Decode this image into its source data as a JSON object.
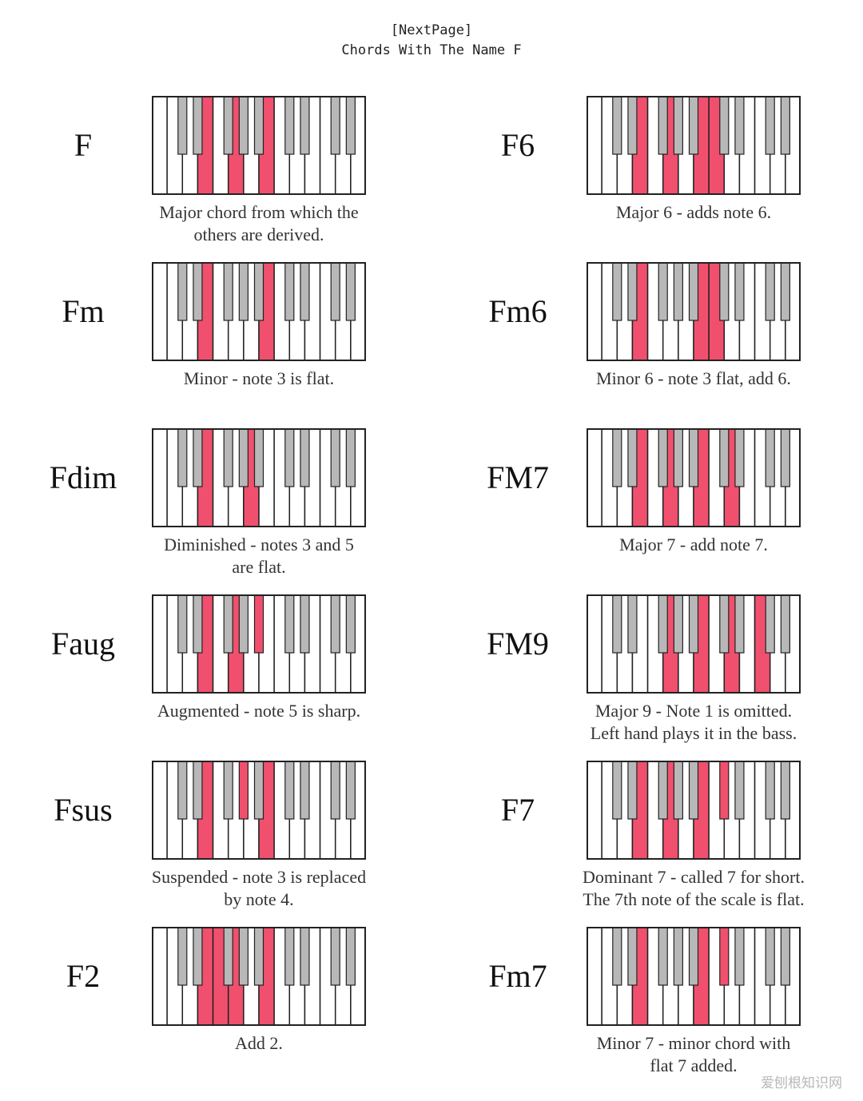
{
  "header": {
    "line1": "[NextPage]",
    "line2": "Chords With The Name F"
  },
  "colors": {
    "highlight": "#f0506e",
    "black_key": "#b8b8b8",
    "outline": "#222222"
  },
  "chords": [
    {
      "name": "F",
      "desc": [
        "Major chord from which the",
        "others are derived."
      ],
      "highlight": [
        "w:3",
        "w:5",
        "w:7"
      ]
    },
    {
      "name": "F6",
      "desc": [
        "Major 6 - adds note 6."
      ],
      "highlight": [
        "w:3",
        "w:5",
        "w:7",
        "w:8"
      ]
    },
    {
      "name": "Fm",
      "desc": [
        "Minor - note 3 is flat."
      ],
      "highlight": [
        "w:3",
        "b:4",
        "w:7"
      ]
    },
    {
      "name": "Fm6",
      "desc": [
        "Minor 6 - note 3 flat, add 6."
      ],
      "highlight": [
        "w:3",
        "b:4",
        "w:7",
        "w:8"
      ]
    },
    {
      "name": "Fdim",
      "desc": [
        "Diminished - notes 3 and 5",
        "are flat."
      ],
      "highlight": [
        "w:3",
        "b:4",
        "w:6"
      ]
    },
    {
      "name": "FM7",
      "desc": [
        "Major 7 - add note 7."
      ],
      "highlight": [
        "w:3",
        "w:5",
        "w:7",
        "w:9"
      ]
    },
    {
      "name": "Faug",
      "desc": [
        "Augmented - note 5 is sharp."
      ],
      "highlight": [
        "w:3",
        "w:5",
        "b:7"
      ]
    },
    {
      "name": "FM9",
      "desc": [
        "Major 9 - Note 1 is omitted.",
        "Left hand plays it in the bass."
      ],
      "highlight": [
        "w:5",
        "w:7",
        "w:9",
        "w:11"
      ]
    },
    {
      "name": "Fsus",
      "desc": [
        "Suspended - note 3 is replaced",
        "by note 4."
      ],
      "highlight": [
        "w:3",
        "b:6",
        "w:7"
      ]
    },
    {
      "name": "F7",
      "desc": [
        "Dominant 7 - called 7 for short.",
        "The 7th note of the scale is flat."
      ],
      "highlight": [
        "w:3",
        "w:5",
        "w:7",
        "b:9"
      ]
    },
    {
      "name": "F2",
      "desc": [
        "Add 2."
      ],
      "highlight": [
        "w:3",
        "w:4",
        "w:5",
        "w:7"
      ]
    },
    {
      "name": "Fm7",
      "desc": [
        "Minor 7 - minor chord with",
        "flat 7 added."
      ],
      "highlight": [
        "w:3",
        "b:4",
        "w:7",
        "b:9"
      ]
    }
  ],
  "watermark": "爱刨根知识网"
}
